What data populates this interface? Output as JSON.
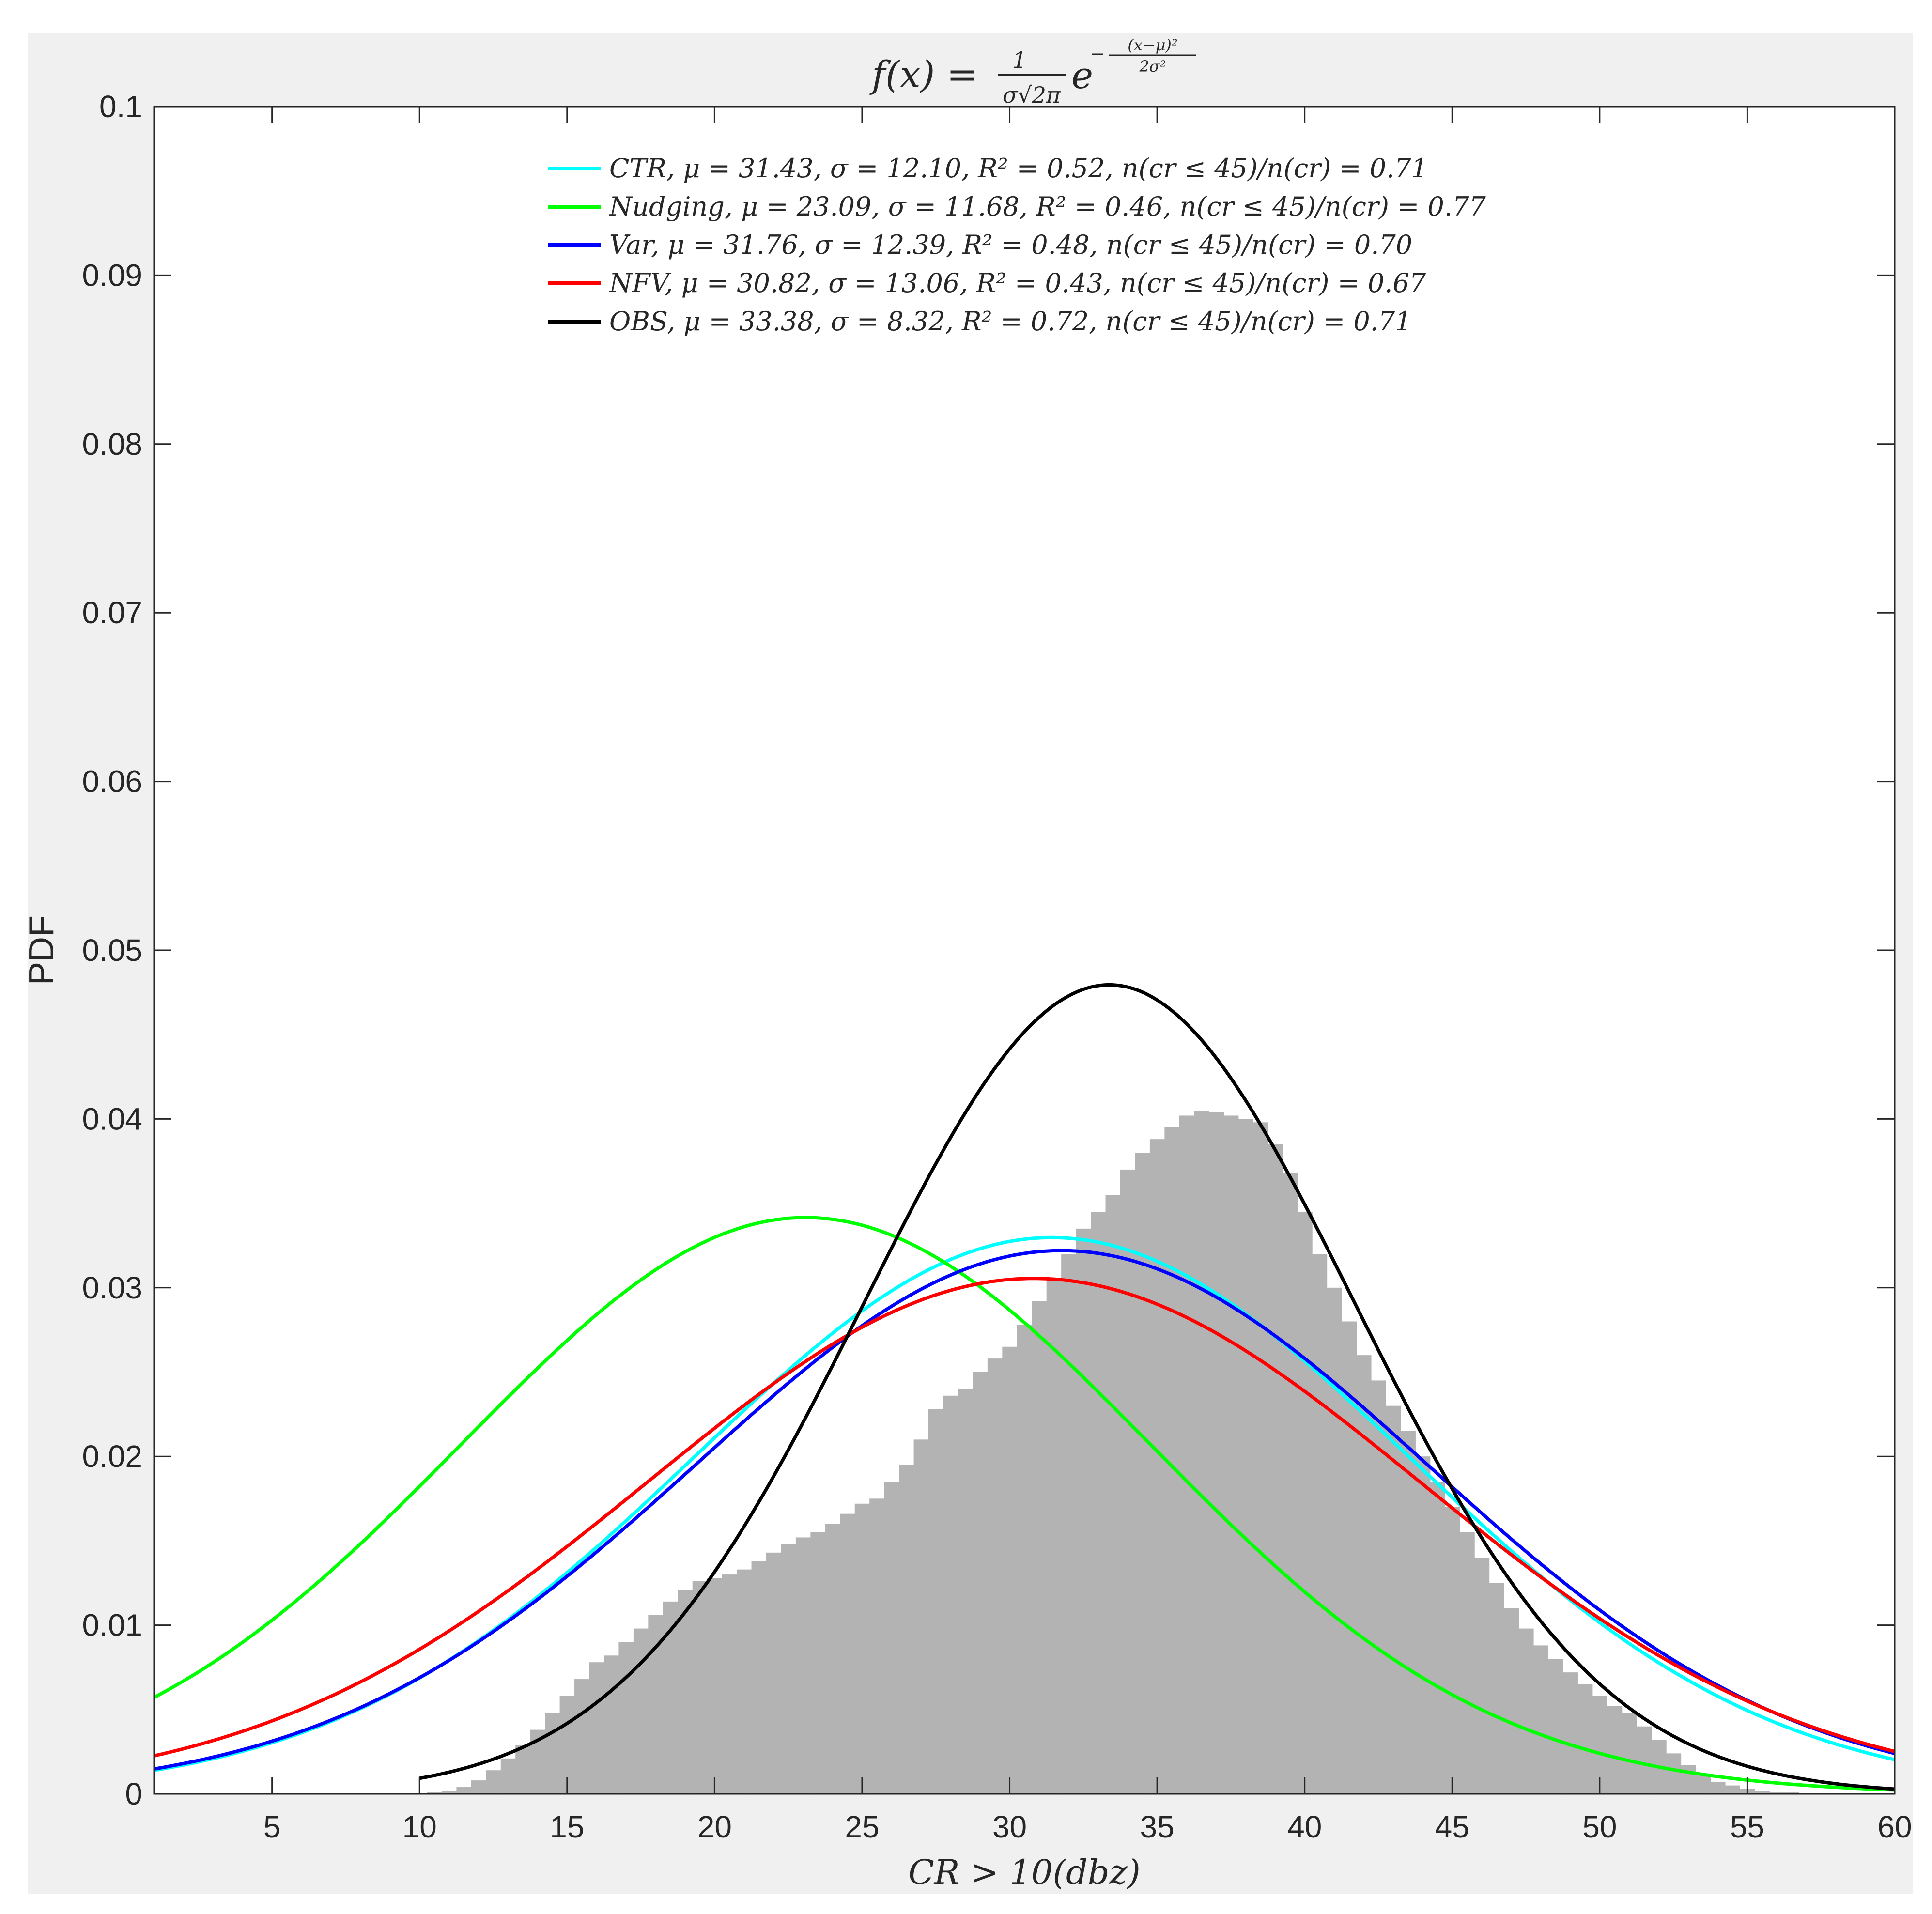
{
  "chart_data": {
    "type": "line",
    "title": "f(x) = 1/(σ√2π) e^(−(x−μ)²/2σ²)",
    "xlabel": "CR > 10(dbz)",
    "ylabel": "PDF",
    "xlim": [
      1,
      60
    ],
    "ylim": [
      0,
      0.1
    ],
    "xticks": [
      5,
      10,
      15,
      20,
      25,
      30,
      35,
      40,
      45,
      50,
      55,
      60
    ],
    "yticks": [
      0,
      0.01,
      0.02,
      0.03,
      0.04,
      0.05,
      0.06,
      0.07,
      0.08,
      0.09,
      0.1
    ],
    "ytick_labels": [
      "0",
      "0.01",
      "0.02",
      "0.03",
      "0.04",
      "0.05",
      "0.06",
      "0.07",
      "0.08",
      "0.09",
      "0.1"
    ],
    "legend_position": "top-center",
    "grid": false,
    "series": [
      {
        "name": "CTR",
        "legend": "CTR, μ = 31.43, σ = 12.10, R² = 0.52, n(cr ≤ 45)/n(cr) = 0.71",
        "mu": 31.43,
        "sigma": 12.1,
        "x_range": [
          1,
          60
        ],
        "color": "#00ffff"
      },
      {
        "name": "Nudging",
        "legend": "Nudging, μ = 23.09, σ = 11.68, R² = 0.46, n(cr ≤ 45)/n(cr) = 0.77",
        "mu": 23.09,
        "sigma": 11.68,
        "x_range": [
          1,
          60
        ],
        "color": "#00ff00"
      },
      {
        "name": "Var",
        "legend": "Var, μ = 31.76, σ = 12.39, R² = 0.48, n(cr ≤ 45)/n(cr) = 0.70",
        "mu": 31.76,
        "sigma": 12.39,
        "x_range": [
          1,
          60
        ],
        "color": "#0000ff"
      },
      {
        "name": "NFV",
        "legend": "NFV, μ = 30.82, σ = 13.06, R² = 0.43, n(cr ≤ 45)/n(cr) = 0.67",
        "mu": 30.82,
        "sigma": 13.06,
        "x_range": [
          1,
          60
        ],
        "color": "#ff0000"
      },
      {
        "name": "OBS",
        "legend": "OBS, μ = 33.38, σ = 8.32, R² = 0.72, n(cr ≤ 45)/n(cr) = 0.71",
        "mu": 33.38,
        "sigma": 8.32,
        "x_range": [
          10,
          60
        ],
        "color": "#000000"
      }
    ],
    "histogram": {
      "color": "#b3b3b3",
      "x": [
        10.5,
        11,
        11.5,
        12,
        12.5,
        13,
        13.5,
        14,
        14.5,
        15,
        15.5,
        16,
        16.5,
        17,
        17.5,
        18,
        18.5,
        19,
        19.5,
        20,
        20.5,
        21,
        21.5,
        22,
        22.5,
        23,
        23.5,
        24,
        24.5,
        25,
        25.5,
        26,
        26.5,
        27,
        27.5,
        28,
        28.5,
        29,
        29.5,
        30,
        30.5,
        31,
        31.5,
        32,
        32.5,
        33,
        33.5,
        34,
        34.5,
        35,
        35.5,
        36,
        36.5,
        37,
        37.5,
        38,
        38.5,
        39,
        39.5,
        40,
        40.5,
        41,
        41.5,
        42,
        42.5,
        43,
        43.5,
        44,
        44.5,
        45,
        45.5,
        46,
        46.5,
        47,
        47.5,
        48,
        48.5,
        49,
        49.5,
        50,
        50.5,
        51,
        51.5,
        52,
        52.5,
        53,
        53.5,
        54,
        54.5,
        55,
        55.5,
        56,
        56.5,
        57,
        57.5,
        58,
        58.5,
        59,
        59.5,
        60
      ],
      "density": [
        0.0001,
        0.0002,
        0.0004,
        0.0008,
        0.0014,
        0.0021,
        0.0029,
        0.0038,
        0.0048,
        0.0058,
        0.0068,
        0.0078,
        0.0082,
        0.009,
        0.0098,
        0.0106,
        0.0114,
        0.0121,
        0.0126,
        0.0128,
        0.013,
        0.0133,
        0.0138,
        0.0143,
        0.0148,
        0.0152,
        0.0155,
        0.016,
        0.0166,
        0.0172,
        0.0175,
        0.0185,
        0.0195,
        0.021,
        0.0228,
        0.0236,
        0.024,
        0.025,
        0.0258,
        0.0265,
        0.0278,
        0.0292,
        0.0305,
        0.032,
        0.0335,
        0.0345,
        0.0355,
        0.037,
        0.038,
        0.0388,
        0.0395,
        0.0402,
        0.0405,
        0.0404,
        0.0402,
        0.04,
        0.0398,
        0.0385,
        0.0368,
        0.0345,
        0.032,
        0.03,
        0.028,
        0.026,
        0.0245,
        0.023,
        0.0215,
        0.02,
        0.0185,
        0.017,
        0.0155,
        0.014,
        0.0125,
        0.011,
        0.0098,
        0.0088,
        0.008,
        0.0072,
        0.0065,
        0.0058,
        0.0052,
        0.0048,
        0.004,
        0.0032,
        0.0024,
        0.0017,
        0.0011,
        0.0007,
        0.0005,
        0.0003,
        0.0002,
        0.0001,
        0.0001,
        0.0,
        0.0,
        0.0,
        0.0,
        0.0,
        0.0,
        0.0
      ]
    }
  }
}
